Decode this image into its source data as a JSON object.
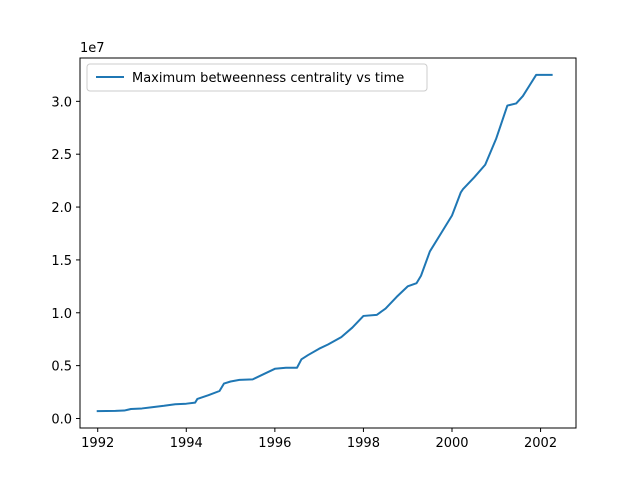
{
  "chart_data": {
    "type": "line",
    "title": "",
    "xlabel": "",
    "ylabel": "",
    "y_offset_label": "1e7",
    "xlim": [
      1991.6,
      2002.8
    ],
    "ylim": [
      -0.9,
      34.1
    ],
    "x_ticks": [
      1992,
      1994,
      1996,
      1998,
      2000,
      2002
    ],
    "x_tick_labels": [
      "1992",
      "1994",
      "1996",
      "1998",
      "2000",
      "2002"
    ],
    "y_ticks": [
      0.0,
      5.0,
      10.0,
      15.0,
      20.0,
      25.0,
      30.0
    ],
    "y_tick_labels": [
      "0.0",
      "0.5",
      "1.0",
      "1.5",
      "2.0",
      "2.5",
      "3.0"
    ],
    "grid": false,
    "legend_position": "top-left",
    "series": [
      {
        "name": "Maximum betweenness centrality vs time",
        "color": "#1f77b4",
        "x": [
          1992.0,
          1992.4,
          1992.6,
          1992.75,
          1993.0,
          1993.2,
          1993.5,
          1993.75,
          1994.0,
          1994.2,
          1994.25,
          1994.5,
          1994.75,
          1994.85,
          1995.0,
          1995.2,
          1995.5,
          1995.75,
          1996.0,
          1996.25,
          1996.5,
          1996.6,
          1996.75,
          1997.0,
          1997.2,
          1997.5,
          1997.75,
          1998.0,
          1998.3,
          1998.5,
          1998.75,
          1999.0,
          1999.2,
          1999.3,
          1999.5,
          1999.75,
          2000.0,
          2000.2,
          2000.25,
          2000.5,
          2000.75,
          2001.0,
          2001.25,
          2001.45,
          2001.6,
          2001.75,
          2001.9,
          2002.0,
          2002.25
        ],
        "y": [
          0.7,
          0.72,
          0.75,
          0.9,
          0.95,
          1.05,
          1.2,
          1.35,
          1.4,
          1.5,
          1.85,
          2.2,
          2.6,
          3.3,
          3.5,
          3.65,
          3.7,
          4.2,
          4.7,
          4.8,
          4.8,
          5.6,
          6.0,
          6.6,
          7.0,
          7.7,
          8.6,
          9.7,
          9.8,
          10.4,
          11.5,
          12.5,
          12.8,
          13.5,
          15.8,
          17.5,
          19.2,
          21.4,
          21.7,
          22.8,
          24.0,
          26.5,
          29.6,
          29.8,
          30.5,
          31.5,
          32.5,
          32.5,
          32.5
        ]
      }
    ]
  }
}
